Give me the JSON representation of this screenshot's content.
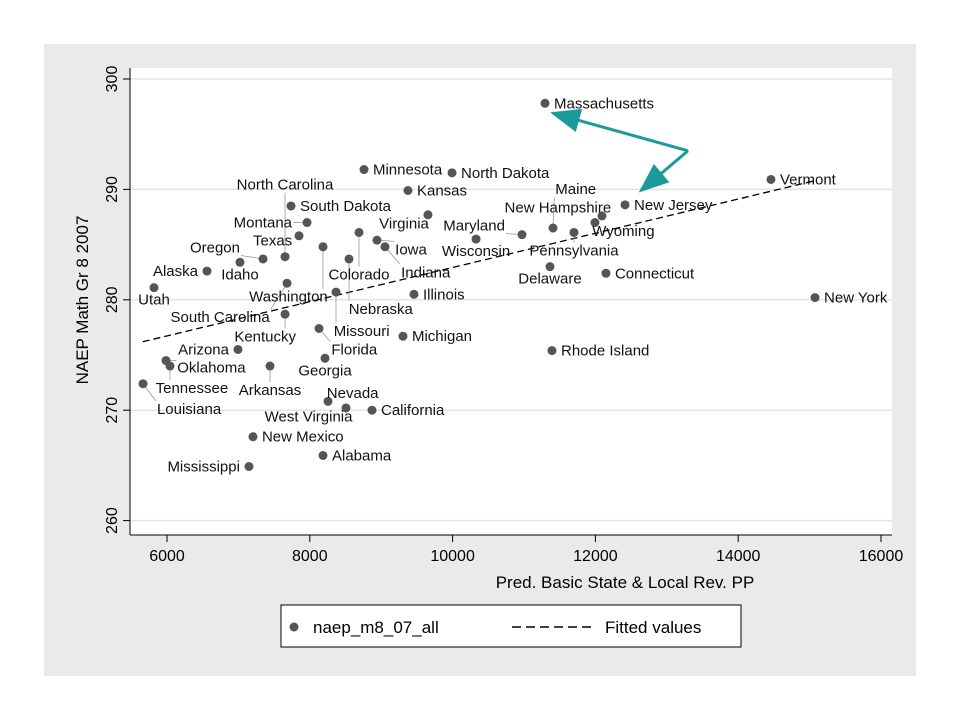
{
  "chart_data": {
    "type": "scatter",
    "xlabel": "Pred. Basic State & Local Rev. PP",
    "ylabel": "NAEP Math Gr 8 2007",
    "xlim": [
      5500,
      16200
    ],
    "ylim": [
      259.5,
      301
    ],
    "xticks": [
      6000,
      8000,
      10000,
      12000,
      14000,
      16000
    ],
    "yticks": [
      260,
      270,
      280,
      290,
      300
    ],
    "grid": "horizontal",
    "legend": {
      "position": "bottom",
      "entries": [
        "naep_m8_07_all",
        "Fitted values"
      ]
    },
    "colors": {
      "points": "#555555",
      "fit": "#000000",
      "arrow": "#1a9a9a",
      "background": "#eaeaea"
    },
    "series": [
      {
        "name": "naep_m8_07_all",
        "points": [
          {
            "label": "Massachusetts",
            "x": 11294,
            "y": 297.8
          },
          {
            "label": "Minnesota",
            "x": 8759,
            "y": 291.8
          },
          {
            "label": "North Dakota",
            "x": 9992,
            "y": 291.5
          },
          {
            "label": "Kansas",
            "x": 9375,
            "y": 289.9
          },
          {
            "label": "Vermont",
            "x": 14459,
            "y": 290.9
          },
          {
            "label": "New Jersey",
            "x": 12415,
            "y": 288.6
          },
          {
            "label": "New Hampshire",
            "x": 12092,
            "y": 287.6
          },
          {
            "label": "Wyoming",
            "x": 11994,
            "y": 287.0
          },
          {
            "label": "Pennsylvania",
            "x": 11700,
            "y": 286.1
          },
          {
            "label": "Maine",
            "x": 11406,
            "y": 286.5
          },
          {
            "label": "Maryland",
            "x": 10972,
            "y": 285.9
          },
          {
            "label": "Wisconsin",
            "x": 10328,
            "y": 285.5
          },
          {
            "label": "South Dakota",
            "x": 7737,
            "y": 288.5
          },
          {
            "label": "Virginia",
            "x": 9655,
            "y": 287.7
          },
          {
            "label": "Montana",
            "x": 7961,
            "y": 287.0
          },
          {
            "label": "Colorado",
            "x": 8689,
            "y": 286.1
          },
          {
            "label": "Texas",
            "x": 7849,
            "y": 285.8
          },
          {
            "label": "Washington",
            "x": 8185,
            "y": 284.8
          },
          {
            "label": "Iowa",
            "x": 8941,
            "y": 285.4
          },
          {
            "label": "Indiana",
            "x": 9053,
            "y": 284.8
          },
          {
            "label": "Idaho",
            "x": 7022,
            "y": 283.4
          },
          {
            "label": "Oregon",
            "x": 7345,
            "y": 283.7
          },
          {
            "label": "North Carolina",
            "x": 7653,
            "y": 283.9
          },
          {
            "label": "Nebraska",
            "x": 8549,
            "y": 283.7
          },
          {
            "label": "Alaska",
            "x": 6560,
            "y": 282.6
          },
          {
            "label": "Utah",
            "x": 5818,
            "y": 281.1
          },
          {
            "label": "South Carolina",
            "x": 7681,
            "y": 281.5
          },
          {
            "label": "Missouri",
            "x": 8367,
            "y": 280.7
          },
          {
            "label": "Illinois",
            "x": 9459,
            "y": 280.5
          },
          {
            "label": "Kentucky",
            "x": 7653,
            "y": 278.7
          },
          {
            "label": "Florida",
            "x": 8129,
            "y": 277.4
          },
          {
            "label": "Michigan",
            "x": 9305,
            "y": 276.7
          },
          {
            "label": "Arizona",
            "x": 6994,
            "y": 275.5
          },
          {
            "label": "Georgia",
            "x": 8213,
            "y": 274.7
          },
          {
            "label": "Oklahoma",
            "x": 5986,
            "y": 274.5
          },
          {
            "label": "Tennessee",
            "x": 6042,
            "y": 274.0
          },
          {
            "label": "Arkansas",
            "x": 7443,
            "y": 274.0
          },
          {
            "label": "Louisiana",
            "x": 5664,
            "y": 272.4
          },
          {
            "label": "Nevada",
            "x": 8255,
            "y": 270.8
          },
          {
            "label": "West Virginia",
            "x": 8507,
            "y": 270.2
          },
          {
            "label": "California",
            "x": 8871,
            "y": 270.0
          },
          {
            "label": "New Mexico",
            "x": 7204,
            "y": 267.6
          },
          {
            "label": "Alabama",
            "x": 8185,
            "y": 265.9
          },
          {
            "label": "Mississippi",
            "x": 7148,
            "y": 264.9
          },
          {
            "label": "Delaware",
            "x": 11364,
            "y": 283.0
          },
          {
            "label": "Connecticut",
            "x": 12148,
            "y": 282.4
          },
          {
            "label": "New York",
            "x": 15076,
            "y": 280.2
          },
          {
            "label": "Rhode Island",
            "x": 11392,
            "y": 275.4
          }
        ]
      },
      {
        "name": "Fitted values",
        "type": "line",
        "points": [
          {
            "x": 5660,
            "y": 276.2
          },
          {
            "x": 15080,
            "y": 290.8
          }
        ]
      }
    ],
    "annotations": [
      {
        "type": "arrow",
        "from": {
          "x": 13297,
          "y": 293.5
        },
        "to": {
          "x": 11406,
          "y": 296.9
        }
      },
      {
        "type": "arrow",
        "from": {
          "x": 13297,
          "y": 293.5
        },
        "to": {
          "x": 12639,
          "y": 289.9
        }
      }
    ]
  }
}
